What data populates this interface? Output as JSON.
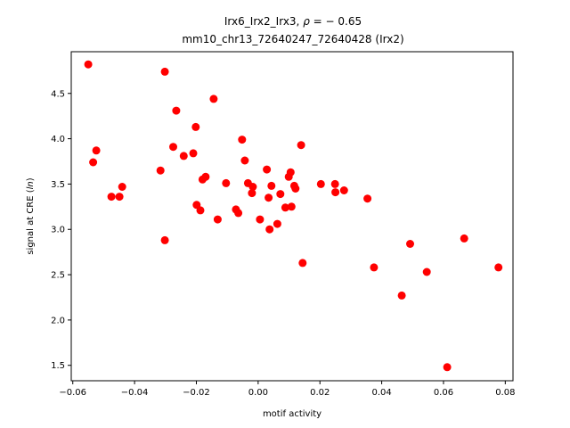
{
  "chart_data": {
    "type": "scatter",
    "title_line1_prefix": "Irx6_Irx2_Irx3, ",
    "title_line1_rho": "ρ",
    "title_line1_suffix": " = − 0.65",
    "title_line2": "mm10_chr13_72640247_72640428 (Irx2)",
    "xlabel": "motif activity",
    "ylabel_prefix": "signal at CRE (",
    "ylabel_italic": "ln",
    "ylabel_suffix": ")",
    "xlim": [
      -0.0605,
      0.0825
    ],
    "ylim": [
      1.33,
      4.96
    ],
    "xticks": [
      -0.06,
      -0.04,
      -0.02,
      0.0,
      0.02,
      0.04,
      0.06,
      0.08
    ],
    "xtick_labels": [
      "−0.06",
      "−0.04",
      "−0.02",
      "0.00",
      "0.02",
      "0.04",
      "0.06",
      "0.08"
    ],
    "yticks": [
      1.5,
      2.0,
      2.5,
      3.0,
      3.5,
      4.0,
      4.5
    ],
    "ytick_labels": [
      "1.5",
      "2.0",
      "2.5",
      "3.0",
      "3.5",
      "4.0",
      "4.5"
    ],
    "grid": false,
    "marker_color": "#ff0000",
    "points": [
      {
        "x": -0.055,
        "y": 4.82
      },
      {
        "x": -0.0534,
        "y": 3.74
      },
      {
        "x": -0.0524,
        "y": 3.87
      },
      {
        "x": -0.0475,
        "y": 3.36
      },
      {
        "x": -0.0449,
        "y": 3.36
      },
      {
        "x": -0.044,
        "y": 3.47
      },
      {
        "x": -0.0316,
        "y": 3.65
      },
      {
        "x": -0.0302,
        "y": 4.74
      },
      {
        "x": -0.0302,
        "y": 2.88
      },
      {
        "x": -0.0275,
        "y": 3.91
      },
      {
        "x": -0.0265,
        "y": 4.31
      },
      {
        "x": -0.0241,
        "y": 3.81
      },
      {
        "x": -0.021,
        "y": 3.84
      },
      {
        "x": -0.0202,
        "y": 4.13
      },
      {
        "x": -0.0199,
        "y": 3.27
      },
      {
        "x": -0.0187,
        "y": 3.21
      },
      {
        "x": -0.018,
        "y": 3.55
      },
      {
        "x": -0.017,
        "y": 3.58
      },
      {
        "x": -0.0144,
        "y": 4.44
      },
      {
        "x": -0.0131,
        "y": 3.11
      },
      {
        "x": -0.0104,
        "y": 3.51
      },
      {
        "x": -0.0072,
        "y": 3.22
      },
      {
        "x": -0.0064,
        "y": 3.18
      },
      {
        "x": -0.0052,
        "y": 3.99
      },
      {
        "x": -0.0043,
        "y": 3.76
      },
      {
        "x": -0.0033,
        "y": 3.51
      },
      {
        "x": -0.002,
        "y": 3.4
      },
      {
        "x": -0.0017,
        "y": 3.47
      },
      {
        "x": 0.0006,
        "y": 3.11
      },
      {
        "x": 0.0028,
        "y": 3.66
      },
      {
        "x": 0.0034,
        "y": 3.35
      },
      {
        "x": 0.0037,
        "y": 3.0
      },
      {
        "x": 0.0043,
        "y": 3.48
      },
      {
        "x": 0.0062,
        "y": 3.06
      },
      {
        "x": 0.0072,
        "y": 3.39
      },
      {
        "x": 0.0088,
        "y": 3.24
      },
      {
        "x": 0.0099,
        "y": 3.58
      },
      {
        "x": 0.0105,
        "y": 3.63
      },
      {
        "x": 0.0108,
        "y": 3.25
      },
      {
        "x": 0.0117,
        "y": 3.48
      },
      {
        "x": 0.0121,
        "y": 3.45
      },
      {
        "x": 0.0139,
        "y": 3.93
      },
      {
        "x": 0.0144,
        "y": 2.63
      },
      {
        "x": 0.0203,
        "y": 3.5
      },
      {
        "x": 0.0249,
        "y": 3.5
      },
      {
        "x": 0.025,
        "y": 3.41
      },
      {
        "x": 0.0278,
        "y": 3.43
      },
      {
        "x": 0.0354,
        "y": 3.34
      },
      {
        "x": 0.0375,
        "y": 2.58
      },
      {
        "x": 0.0465,
        "y": 2.27
      },
      {
        "x": 0.0492,
        "y": 2.84
      },
      {
        "x": 0.0546,
        "y": 2.53
      },
      {
        "x": 0.0612,
        "y": 1.48
      },
      {
        "x": 0.0667,
        "y": 2.9
      },
      {
        "x": 0.0778,
        "y": 2.58
      }
    ]
  }
}
